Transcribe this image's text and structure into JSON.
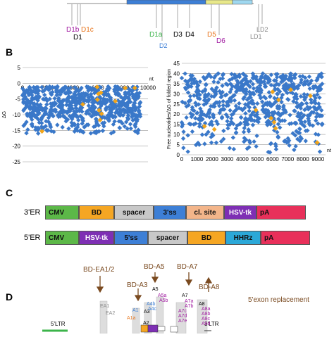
{
  "panels": {
    "b": "B",
    "c": "C",
    "d": "D"
  },
  "panel_a": {
    "sites": [
      {
        "label": "D1b",
        "color": "#a01aa0"
      },
      {
        "label": "D1c",
        "color": "#e8761e"
      },
      {
        "label": "D1",
        "color": "#000000"
      },
      {
        "label": "D1a",
        "color": "#3cb44b"
      },
      {
        "label": "D2",
        "color": "#3d7fd6"
      },
      {
        "label": "D3",
        "color": "#000000"
      },
      {
        "label": "D4",
        "color": "#000000"
      },
      {
        "label": "D5",
        "color": "#e8761e"
      },
      {
        "label": "D6",
        "color": "#a01aa0"
      },
      {
        "label": "LD2",
        "color": "#8a8a8a"
      },
      {
        "label": "LD1",
        "color": "#8a8a8a"
      }
    ]
  },
  "chart_data": [
    {
      "type": "scatter",
      "xlabel": "nt",
      "ylabel": "ΔG",
      "xlim": [
        0,
        10000
      ],
      "ylim": [
        -25,
        5
      ],
      "x_ticks": [
        0,
        2000,
        4000,
        6000,
        8000,
        10000
      ],
      "y_ticks": [
        5,
        0,
        -5,
        -10,
        -15,
        -20,
        -25
      ],
      "grid": true,
      "series": [
        {
          "color": "#3a78c9",
          "x_range": [
            0,
            9400
          ],
          "y_range": [
            -16,
            -1
          ]
        },
        {
          "color": "#f2a51a",
          "points": [
            [
              1550,
              -15.3
            ],
            [
              4800,
              -6.7
            ],
            [
              5950,
              -1.2
            ],
            [
              5970,
              -5.2
            ],
            [
              6050,
              -3.4
            ],
            [
              6100,
              -8.6
            ],
            [
              6180,
              -11.7
            ],
            [
              6250,
              -3.0
            ],
            [
              6300,
              -9.7
            ],
            [
              7400,
              -5.7
            ],
            [
              8200,
              -1.5
            ],
            [
              8950,
              -1.5
            ]
          ]
        }
      ]
    },
    {
      "type": "scatter",
      "xlabel": "nt",
      "ylabel": "Free nucleotides/ΔG of folded region",
      "xlim": [
        0,
        9500
      ],
      "ylim": [
        0,
        45
      ],
      "x_ticks": [
        0,
        1000,
        2000,
        3000,
        4000,
        5000,
        6000,
        7000,
        8000,
        9000
      ],
      "y_ticks": [
        0,
        5,
        10,
        15,
        20,
        25,
        30,
        35,
        40,
        45
      ],
      "grid": true,
      "series": [
        {
          "color": "#3a78c9",
          "x_range": [
            0,
            9300
          ],
          "y_range": [
            1,
            40
          ]
        },
        {
          "color": "#f2a51a",
          "points": [
            [
              1500,
              14
            ],
            [
              2150,
              12.5
            ],
            [
              4900,
              22
            ],
            [
              5900,
              18
            ],
            [
              6000,
              31
            ],
            [
              6100,
              16
            ],
            [
              6200,
              13
            ],
            [
              6400,
              27
            ],
            [
              7200,
              32
            ],
            [
              8500,
              29
            ],
            [
              8950,
              6
            ]
          ]
        }
      ]
    }
  ],
  "panel_c": {
    "rows": [
      {
        "label": "3'ER",
        "boxes": [
          {
            "text": "CMV",
            "color": "#5cb848"
          },
          {
            "text": "BD",
            "color": "#f5a623"
          },
          {
            "text": "spacer",
            "color": "#c8c8c8"
          },
          {
            "text": "3'ss",
            "color": "#3d7fd6"
          },
          {
            "text": "cl. site",
            "color": "#f3b58a"
          },
          {
            "text": "HSV-tk",
            "color": "#7e2fb4"
          },
          {
            "text": "pA",
            "color": "#e8305a"
          }
        ]
      },
      {
        "label": "5'ER",
        "boxes": [
          {
            "text": "CMV",
            "color": "#5cb848"
          },
          {
            "text": "HSV-tk",
            "color": "#7e2fb4"
          },
          {
            "text": "5'ss",
            "color": "#3d7fd6"
          },
          {
            "text": "spacer",
            "color": "#c8c8c8"
          },
          {
            "text": "BD",
            "color": "#f5a623"
          },
          {
            "text": "HHRz",
            "color": "#2ba8d8"
          },
          {
            "text": "pA",
            "color": "#e8305a"
          }
        ]
      }
    ]
  },
  "panel_d": {
    "arrow_labels": [
      "BD-EA1/2",
      "BD-A3",
      "BD-A5",
      "BD-A7",
      "BD-A8"
    ],
    "note": "5'exon replacement",
    "ltr_left": "5'LTR",
    "ltr_right": "3'LTR",
    "site_labels": [
      {
        "text": "EA1",
        "color": "#8a8a8a"
      },
      {
        "text": "EA2",
        "color": "#8a8a8a"
      },
      {
        "text": "A1",
        "color": "#3d7fd6"
      },
      {
        "text": "A1a",
        "color": "#e8761e"
      },
      {
        "text": "A2",
        "color": "#000000"
      },
      {
        "text": "A3",
        "color": "#000000"
      },
      {
        "text": "A4b",
        "color": "#3d7fd6"
      },
      {
        "text": "A4c",
        "color": "#3d7fd6"
      },
      {
        "text": "A5",
        "color": "#000000"
      },
      {
        "text": "A5a",
        "color": "#a01aa0"
      },
      {
        "text": "A5b",
        "color": "#a01aa0"
      },
      {
        "text": "A7",
        "color": "#000000"
      },
      {
        "text": "A7a",
        "color": "#a01aa0"
      },
      {
        "text": "A7b",
        "color": "#a01aa0"
      },
      {
        "text": "A7c",
        "color": "#a01aa0"
      },
      {
        "text": "A7d",
        "color": "#a01aa0"
      },
      {
        "text": "A7e",
        "color": "#a01aa0"
      },
      {
        "text": "A8",
        "color": "#000000"
      },
      {
        "text": "A8a",
        "color": "#a01aa0"
      },
      {
        "text": "A8b",
        "color": "#a01aa0"
      },
      {
        "text": "A8c",
        "color": "#a01aa0"
      },
      {
        "text": "A8d",
        "color": "#a01aa0"
      }
    ]
  }
}
